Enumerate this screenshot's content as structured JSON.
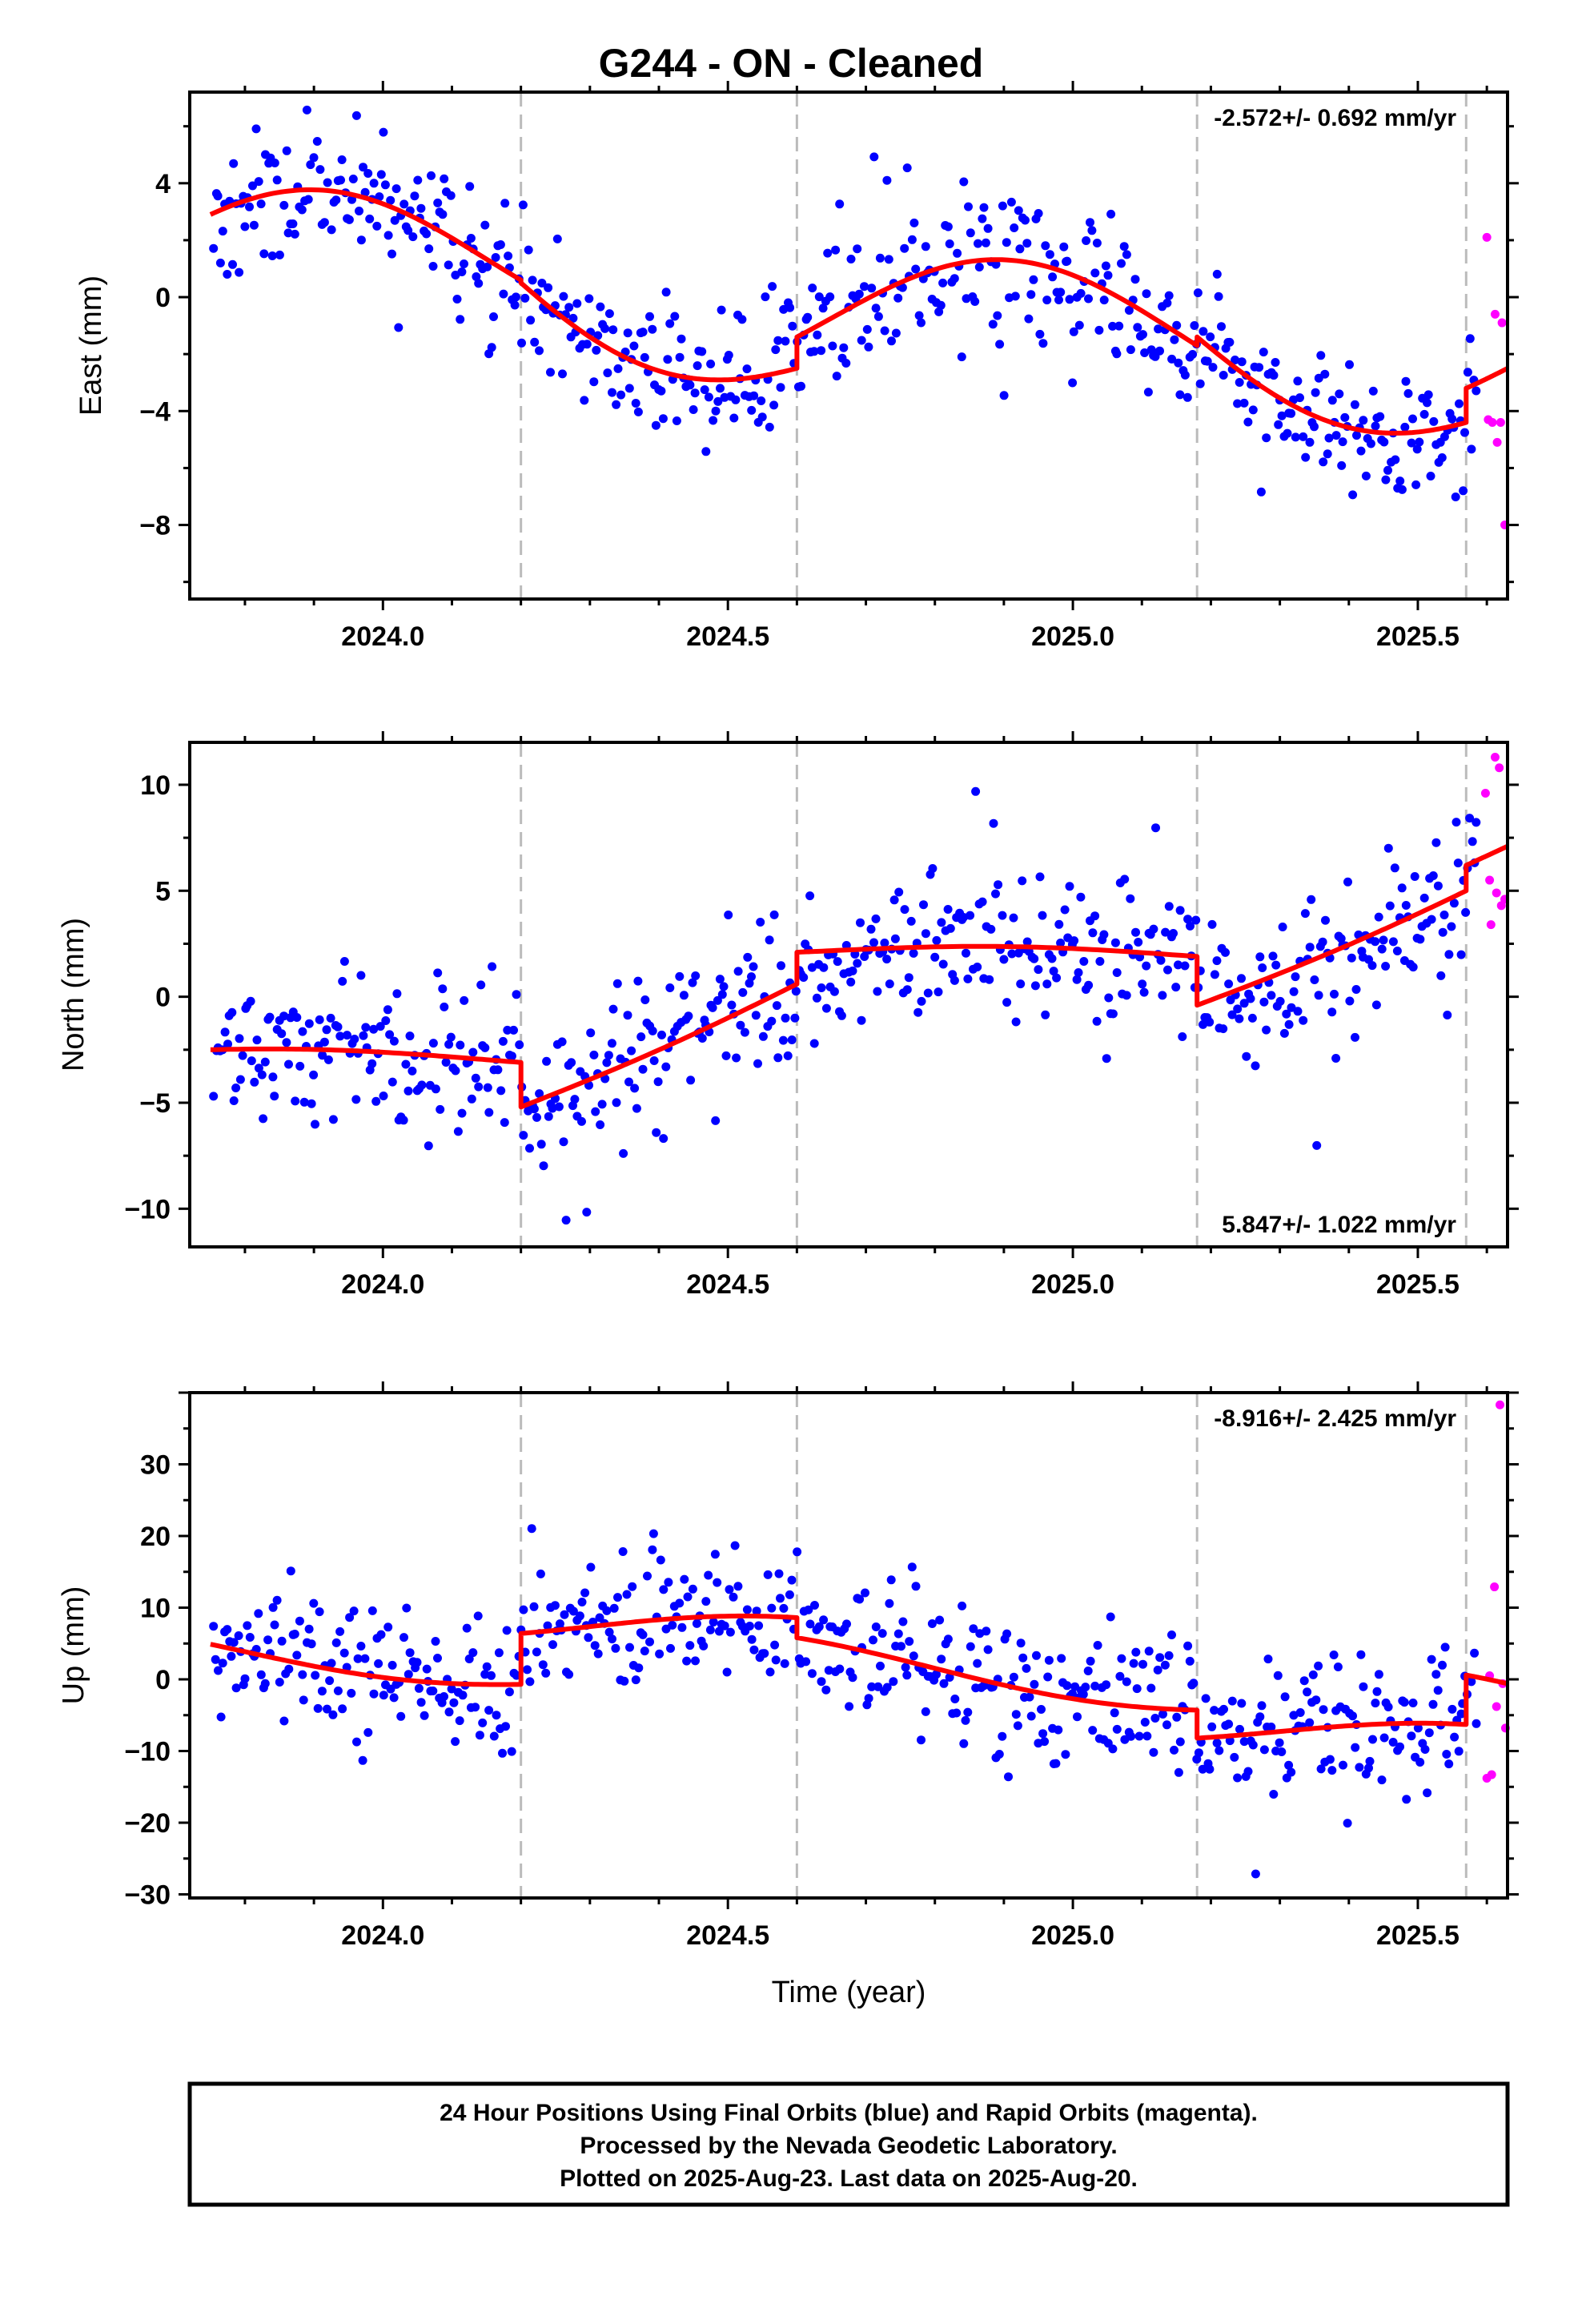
{
  "chart_data": [
    {
      "type": "scatter",
      "title": "G244  - ON - Cleaned",
      "ylabel": "East (mm)",
      "xlabel": "",
      "xlim": [
        2023.72,
        2025.63
      ],
      "ylim": [
        -10.6,
        7.2
      ],
      "xticks": [
        2024.0,
        2024.5,
        2025.0,
        2025.5
      ],
      "xtick_labels": [
        "2024.0",
        "2024.5",
        "2025.0",
        "2025.5"
      ],
      "yticks": [
        -8,
        -4,
        0,
        4
      ],
      "ytick_labels": [
        "−8",
        "−4",
        "0",
        "4"
      ],
      "rate_label": "-2.572+/- 0.692 mm/yr",
      "rate_position": "top-right",
      "grid": false,
      "breaks": [
        2024.2,
        2024.6,
        2025.18,
        2025.57
      ],
      "fit_model": {
        "segments": [
          {
            "x": [
              2023.75,
              2024.2
            ],
            "y": [
              2.9,
              0.6
            ]
          },
          {
            "x": [
              2024.2,
              2024.6
            ],
            "y": [
              0.5,
              -2.5
            ]
          },
          {
            "x": [
              2024.6,
              2025.18
            ],
            "y": [
              -1.4,
              -1.7
            ]
          },
          {
            "x": [
              2025.18,
              2025.57
            ],
            "y": [
              -1.4,
              -4.4
            ]
          },
          {
            "x": [
              2025.57,
              2025.63
            ],
            "y": [
              -3.2,
              -2.5
            ]
          }
        ],
        "seasonal_amplitude": 2.3,
        "seasonal_phase_year": 2023.9
      },
      "final_orbits": {
        "color": "#0000ff",
        "n_points": 560,
        "noise_mm": 1.3,
        "seed": 11
      },
      "rapid_orbits": {
        "color": "#ff00ff",
        "points": [
          {
            "x": 2025.6,
            "y": 2.1
          },
          {
            "x": 2025.602,
            "y": -4.3
          },
          {
            "x": 2025.608,
            "y": -4.4
          },
          {
            "x": 2025.612,
            "y": -0.6
          },
          {
            "x": 2025.615,
            "y": -5.1
          },
          {
            "x": 2025.62,
            "y": -4.4
          },
          {
            "x": 2025.622,
            "y": -0.9
          },
          {
            "x": 2025.626,
            "y": -8.0
          }
        ]
      },
      "fit_color": "#ff0000"
    },
    {
      "type": "scatter",
      "title": "",
      "ylabel": "North (mm)",
      "xlabel": "",
      "xlim": [
        2023.72,
        2025.63
      ],
      "ylim": [
        -11.8,
        12.0
      ],
      "xticks": [
        2024.0,
        2024.5,
        2025.0,
        2025.5
      ],
      "xtick_labels": [
        "2024.0",
        "2024.5",
        "2025.0",
        "2025.5"
      ],
      "yticks": [
        -10,
        -5,
        0,
        5,
        10
      ],
      "ytick_labels": [
        "−10",
        "−5",
        "0",
        "5",
        "10"
      ],
      "rate_label": "5.847+/- 1.022 mm/yr",
      "rate_position": "bottom-right",
      "grid": false,
      "breaks": [
        2024.2,
        2024.6,
        2025.18,
        2025.57
      ],
      "fit_model": {
        "segments": [
          {
            "x": [
              2023.75,
              2024.2
            ],
            "y": [
              -2.5,
              -3.1
            ]
          },
          {
            "x": [
              2024.2,
              2024.6
            ],
            "y": [
              -5.2,
              0.6
            ]
          },
          {
            "x": [
              2024.6,
              2025.18
            ],
            "y": [
              2.1,
              1.9
            ]
          },
          {
            "x": [
              2025.18,
              2025.57
            ],
            "y": [
              -0.4,
              5.0
            ]
          },
          {
            "x": [
              2025.57,
              2025.63
            ],
            "y": [
              6.2,
              7.1
            ]
          }
        ],
        "seasonal_amplitude": 0.3,
        "seasonal_phase_year": 2023.9
      },
      "final_orbits": {
        "color": "#0000ff",
        "n_points": 560,
        "noise_mm": 1.7,
        "seed": 23
      },
      "rapid_orbits": {
        "color": "#ff00ff",
        "points": [
          {
            "x": 2025.598,
            "y": 9.6
          },
          {
            "x": 2025.604,
            "y": 5.5
          },
          {
            "x": 2025.606,
            "y": 3.4
          },
          {
            "x": 2025.612,
            "y": 11.3
          },
          {
            "x": 2025.614,
            "y": 4.9
          },
          {
            "x": 2025.618,
            "y": 10.8
          },
          {
            "x": 2025.621,
            "y": 4.3
          },
          {
            "x": 2025.626,
            "y": 4.6
          }
        ]
      },
      "fit_color": "#ff0000"
    },
    {
      "type": "scatter",
      "title": "",
      "ylabel": "Up (mm)",
      "xlabel": "Time (year)",
      "xlim": [
        2023.72,
        2025.63
      ],
      "ylim": [
        -30.5,
        40.0
      ],
      "xticks": [
        2024.0,
        2024.5,
        2025.0,
        2025.5
      ],
      "xtick_labels": [
        "2024.0",
        "2024.5",
        "2025.0",
        "2025.5"
      ],
      "yticks": [
        -30,
        -20,
        -10,
        0,
        10,
        20,
        30
      ],
      "ytick_labels": [
        "−30",
        "−20",
        "−10",
        "0",
        "10",
        "20",
        "30"
      ],
      "rate_label": "-8.916+/- 2.425 mm/yr",
      "rate_position": "top-right",
      "grid": false,
      "breaks": [
        2024.2,
        2024.6,
        2025.18,
        2025.57
      ],
      "fit_model": {
        "segments": [
          {
            "x": [
              2023.75,
              2024.2
            ],
            "y": [
              4.9,
              -0.7
            ]
          },
          {
            "x": [
              2024.2,
              2024.6
            ],
            "y": [
              6.4,
              8.6
            ]
          },
          {
            "x": [
              2024.6,
              2025.18
            ],
            "y": [
              5.8,
              -4.3
            ]
          },
          {
            "x": [
              2025.18,
              2025.57
            ],
            "y": [
              -8.2,
              -6.3
            ]
          },
          {
            "x": [
              2025.57,
              2025.63
            ],
            "y": [
              0.6,
              -0.6
            ]
          }
        ],
        "seasonal_amplitude": 2.0,
        "seasonal_phase_year": 2024.55
      },
      "final_orbits": {
        "color": "#0000ff",
        "n_points": 560,
        "noise_mm": 4.8,
        "seed": 37
      },
      "rapid_orbits": {
        "color": "#ff00ff",
        "points": [
          {
            "x": 2025.6,
            "y": -13.8
          },
          {
            "x": 2025.604,
            "y": 0.5
          },
          {
            "x": 2025.607,
            "y": -13.3
          },
          {
            "x": 2025.611,
            "y": 12.9
          },
          {
            "x": 2025.614,
            "y": -3.8
          },
          {
            "x": 2025.619,
            "y": 38.3
          },
          {
            "x": 2025.623,
            "y": -0.6
          },
          {
            "x": 2025.627,
            "y": -6.8
          }
        ]
      },
      "fit_color": "#ff0000"
    }
  ],
  "footer": {
    "line1": "24 Hour Positions Using Final Orbits (blue) and Rapid Orbits (magenta).",
    "line2": "Processed by the Nevada Geodetic Laboratory.",
    "line3": "Plotted on 2025-Aug-23. Last data on 2025-Aug-20."
  }
}
